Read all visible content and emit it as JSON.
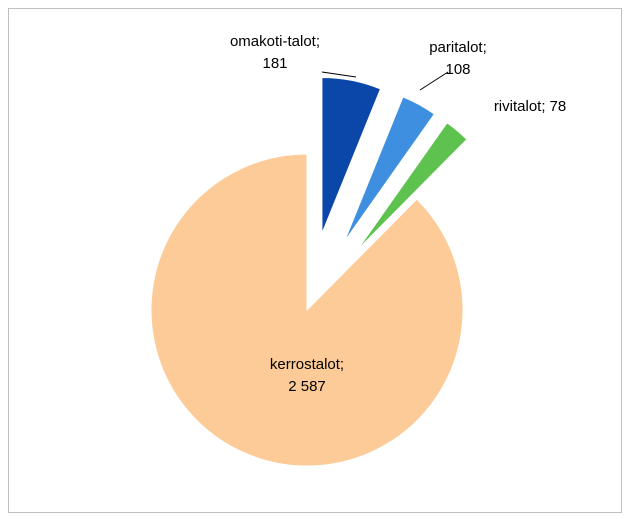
{
  "chart_data": {
    "type": "pie",
    "categories": [
      "omakoti-talot",
      "paritalot",
      "rivitalot",
      "kerrostalot"
    ],
    "values": [
      181,
      108,
      78,
      2587
    ],
    "value_labels": [
      "181",
      "108",
      "78",
      "2 587"
    ],
    "separator": ";",
    "colors": [
      "#0a47a8",
      "#3f8fe0",
      "#5ec24e",
      "#fdcb97"
    ],
    "exploded": [
      true,
      true,
      true,
      false
    ]
  }
}
